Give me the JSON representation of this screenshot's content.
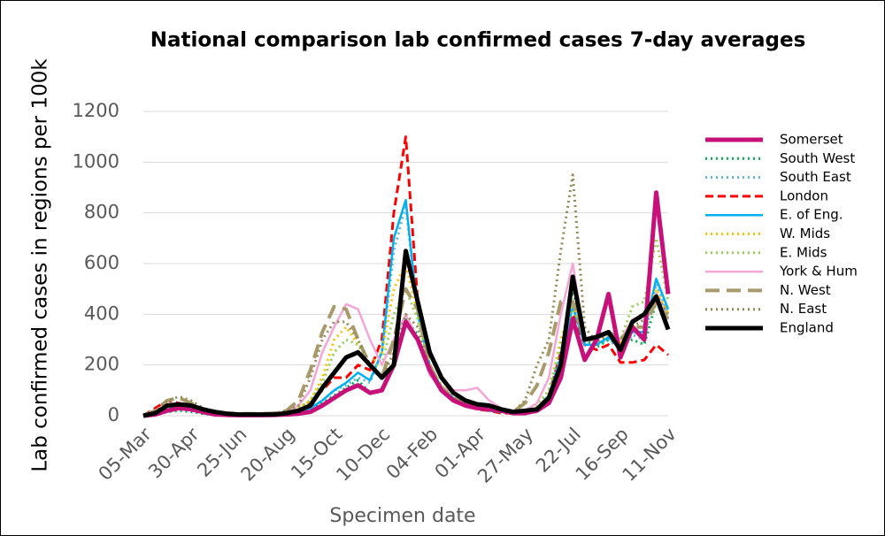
{
  "chart_data": {
    "type": "line",
    "title": "National comparison lab confirmed cases 7-day averages",
    "y_label": "Lab confirmed cases in regions per 100k",
    "x_label": "Specimen date",
    "categories": [
      "05-Mar",
      null,
      null,
      null,
      "30-Apr",
      null,
      null,
      null,
      "25-Jun",
      null,
      null,
      null,
      "20-Aug",
      null,
      null,
      null,
      "15-Oct",
      null,
      null,
      null,
      "10-Dec",
      null,
      null,
      null,
      "04-Feb",
      null,
      null,
      null,
      "01-Apr",
      null,
      null,
      null,
      "27-May",
      null,
      null,
      null,
      "22-Jul",
      null,
      null,
      null,
      "16-Sep",
      null,
      null,
      null,
      "11-Nov"
    ],
    "ylim": [
      0,
      1200
    ],
    "yticks": [
      0,
      200,
      400,
      600,
      800,
      1000,
      1200
    ],
    "grid": true,
    "series": [
      {
        "name": "Somerset",
        "color": "#c8107a",
        "style": "thick",
        "values": [
          0,
          5,
          20,
          30,
          25,
          15,
          5,
          3,
          2,
          2,
          2,
          3,
          5,
          8,
          15,
          40,
          70,
          100,
          120,
          90,
          100,
          200,
          370,
          300,
          180,
          100,
          60,
          40,
          30,
          25,
          20,
          10,
          10,
          20,
          50,
          150,
          380,
          220,
          300,
          480,
          230,
          350,
          300,
          880,
          480
        ]
      },
      {
        "name": "South West",
        "color": "#00b050",
        "style": "dotted",
        "values": [
          0,
          5,
          15,
          20,
          15,
          8,
          3,
          2,
          2,
          2,
          2,
          3,
          5,
          10,
          20,
          50,
          80,
          110,
          140,
          90,
          100,
          200,
          380,
          320,
          180,
          100,
          60,
          40,
          30,
          20,
          15,
          10,
          15,
          30,
          70,
          200,
          500,
          300,
          270,
          300,
          280,
          300,
          280,
          450,
          420
        ]
      },
      {
        "name": "South East",
        "color": "#5bb6e8",
        "style": "dotted",
        "values": [
          0,
          15,
          40,
          35,
          25,
          10,
          5,
          3,
          2,
          2,
          3,
          5,
          10,
          15,
          30,
          60,
          100,
          120,
          150,
          130,
          250,
          650,
          830,
          400,
          200,
          100,
          60,
          40,
          30,
          20,
          15,
          10,
          15,
          30,
          80,
          250,
          450,
          280,
          280,
          300,
          260,
          320,
          300,
          520,
          400
        ]
      },
      {
        "name": "London",
        "color": "#ff0000",
        "style": "dashed",
        "values": [
          0,
          30,
          60,
          50,
          30,
          10,
          5,
          3,
          2,
          2,
          3,
          5,
          10,
          20,
          50,
          100,
          150,
          150,
          200,
          180,
          300,
          800,
          1100,
          450,
          200,
          100,
          60,
          40,
          25,
          20,
          10,
          10,
          15,
          30,
          80,
          250,
          400,
          280,
          260,
          280,
          210,
          210,
          220,
          280,
          240
        ]
      },
      {
        "name": "E. of Eng.",
        "color": "#00b0f0",
        "style": "solid",
        "values": [
          0,
          10,
          35,
          35,
          25,
          10,
          5,
          3,
          2,
          2,
          3,
          5,
          10,
          15,
          30,
          60,
          100,
          130,
          170,
          140,
          250,
          700,
          850,
          400,
          200,
          110,
          70,
          45,
          30,
          20,
          15,
          10,
          15,
          30,
          80,
          230,
          430,
          280,
          280,
          310,
          270,
          330,
          330,
          540,
          420
        ]
      },
      {
        "name": "W. Mids",
        "color": "#ffc000",
        "style": "dotted",
        "values": [
          0,
          10,
          40,
          50,
          35,
          20,
          10,
          5,
          5,
          5,
          5,
          8,
          15,
          30,
          60,
          150,
          300,
          350,
          280,
          200,
          250,
          500,
          600,
          400,
          200,
          120,
          70,
          50,
          35,
          25,
          20,
          15,
          20,
          40,
          100,
          300,
          450,
          300,
          300,
          320,
          290,
          350,
          350,
          500,
          400
        ]
      },
      {
        "name": "E. Mids",
        "color": "#92d050",
        "style": "dotted",
        "values": [
          0,
          8,
          30,
          40,
          35,
          20,
          10,
          8,
          5,
          5,
          5,
          8,
          15,
          30,
          60,
          130,
          250,
          300,
          280,
          200,
          200,
          400,
          500,
          380,
          200,
          120,
          70,
          50,
          35,
          25,
          20,
          15,
          20,
          40,
          100,
          280,
          430,
          300,
          300,
          330,
          300,
          430,
          450,
          700,
          450
        ]
      },
      {
        "name": "York & Hum",
        "color": "#f4a6d7",
        "style": "solid",
        "values": [
          0,
          10,
          40,
          50,
          40,
          20,
          10,
          8,
          5,
          5,
          5,
          8,
          15,
          40,
          100,
          250,
          350,
          440,
          420,
          300,
          200,
          300,
          400,
          300,
          160,
          110,
          100,
          100,
          110,
          60,
          30,
          20,
          20,
          50,
          150,
          400,
          600,
          300,
          300,
          330,
          300,
          380,
          400,
          480,
          380
        ]
      },
      {
        "name": "N. West",
        "color": "#a89a6a",
        "style": "long-dash",
        "values": [
          0,
          20,
          60,
          70,
          50,
          25,
          15,
          10,
          8,
          8,
          8,
          10,
          20,
          60,
          180,
          330,
          430,
          420,
          300,
          200,
          150,
          300,
          500,
          420,
          200,
          110,
          70,
          50,
          35,
          25,
          20,
          15,
          50,
          120,
          250,
          450,
          450,
          300,
          300,
          330,
          300,
          350,
          350,
          450,
          380
        ]
      },
      {
        "name": "N. East",
        "color": "#948a54",
        "style": "dotted",
        "values": [
          0,
          20,
          60,
          75,
          60,
          30,
          15,
          8,
          5,
          5,
          5,
          10,
          20,
          40,
          150,
          300,
          370,
          370,
          300,
          200,
          150,
          250,
          400,
          350,
          180,
          100,
          70,
          50,
          35,
          25,
          20,
          15,
          60,
          200,
          300,
          650,
          950,
          350,
          290,
          320,
          300,
          350,
          380,
          480,
          400
        ]
      },
      {
        "name": "England",
        "color": "#000000",
        "style": "thick",
        "values": [
          0,
          10,
          40,
          45,
          40,
          25,
          15,
          8,
          5,
          5,
          5,
          5,
          10,
          20,
          40,
          110,
          170,
          230,
          250,
          200,
          150,
          200,
          650,
          450,
          250,
          150,
          90,
          60,
          45,
          40,
          25,
          15,
          20,
          25,
          70,
          200,
          548,
          300,
          310,
          330,
          260,
          370,
          400,
          470,
          340
        ]
      }
    ]
  }
}
